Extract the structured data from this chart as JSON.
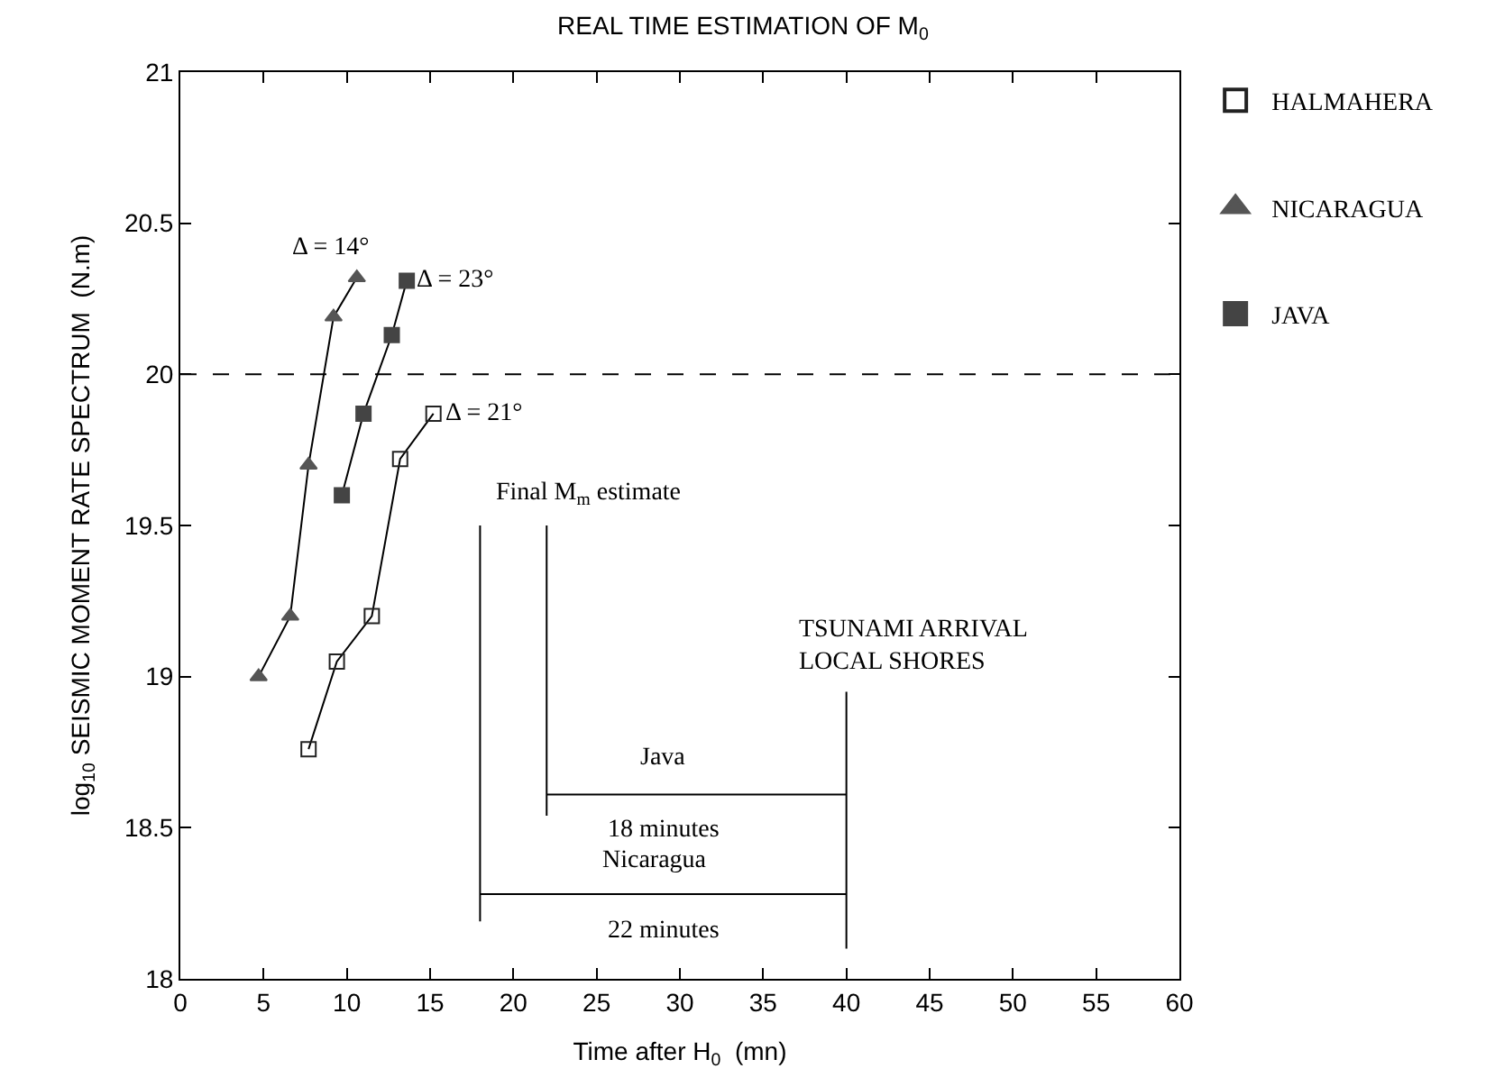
{
  "chart_data": {
    "type": "line",
    "title": "REAL TIME ESTIMATION OF M$_{0}$",
    "xlabel": "Time after H$_{0}$  (mn)",
    "ylabel": "log$_{10}$ SEISMIC MOMENT RATE SPECTRUM  (N.m)",
    "xlim": [
      0,
      60
    ],
    "xticks": [
      0,
      5,
      10,
      15,
      20,
      25,
      30,
      35,
      40,
      45,
      50,
      55,
      60
    ],
    "ylim": [
      18,
      21
    ],
    "yticks": [
      18,
      18.5,
      19,
      19.5,
      20,
      20.5,
      21
    ],
    "legend": "top right",
    "line_style": "solid",
    "series": [
      {
        "name": "HALMAHERA",
        "color": "#222222",
        "marker": "square-open",
        "x": [
          7.7,
          9.4,
          11.5,
          13.2,
          15.2
        ],
        "values": [
          18.76,
          19.05,
          19.2,
          19.72,
          19.87
        ]
      },
      {
        "name": "NICARAGUA",
        "color": "#555555",
        "marker": "triangle",
        "x": [
          4.7,
          6.6,
          7.7,
          9.2,
          10.6
        ],
        "values": [
          19.0,
          19.2,
          19.7,
          20.19,
          20.32
        ]
      },
      {
        "name": "JAVA",
        "color": "#444444",
        "marker": "square",
        "x": [
          9.7,
          11.0,
          12.7,
          13.6
        ],
        "values": [
          19.6,
          19.87,
          20.13,
          20.31
        ]
      },
      {
        "color": "#000000",
        "marker": "none",
        "x": [
          18,
          18
        ],
        "values": [
          18.19,
          19.5
        ]
      },
      {
        "color": "#000000",
        "marker": "none",
        "x": [
          22,
          22
        ],
        "values": [
          18.54,
          19.5
        ]
      },
      {
        "color": "#000000",
        "marker": "none",
        "x": [
          40,
          40
        ],
        "values": [
          18.1,
          18.95
        ]
      },
      {
        "color": "#000000",
        "marker": "none",
        "x": [
          22,
          40
        ],
        "values": [
          18.61,
          18.61
        ]
      },
      {
        "color": "#000000",
        "marker": "none",
        "x": [
          18,
          40
        ],
        "values": [
          18.28,
          18.28
        ]
      }
    ],
    "ref_lines": [
      {
        "axis": "y",
        "value": 20,
        "color": "#000000",
        "line_style": "dashed"
      }
    ],
    "annotations": [
      "Δ = 14°",
      "Δ = 23°",
      "Δ = 21°",
      "Final M$_{m}$ estimate",
      "TSUNAMI ARRIVAL\nLOCAL SHORES",
      "Java",
      "18 minutes",
      "Nicaragua",
      "22 minutes"
    ]
  }
}
